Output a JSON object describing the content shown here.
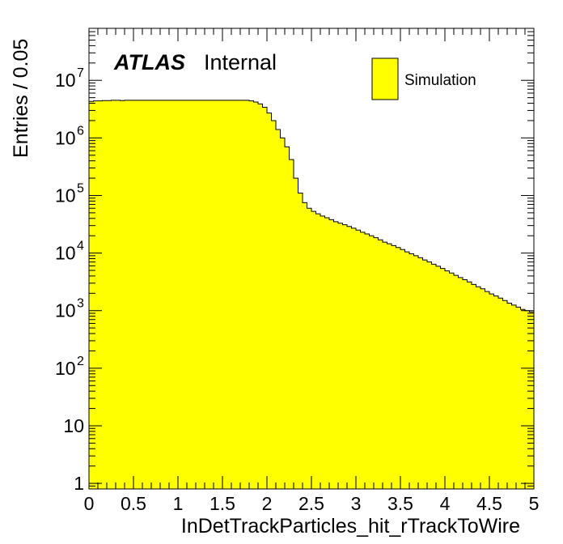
{
  "chart_data": {
    "type": "bar",
    "style": "filled-step-histogram",
    "fill_color": "#ffff00",
    "line_color": "#000000",
    "xlabel": "InDetTrackParticles_hit_rTrackToWire",
    "ylabel": "Entries / 0.05",
    "xlim": [
      0,
      5
    ],
    "ylim": [
      0.8,
      80000000
    ],
    "y_scale": "log",
    "bin_width": 0.05,
    "grid": false,
    "x_ticks": [
      "0",
      "0.5",
      "1",
      "1.5",
      "2",
      "2.5",
      "3",
      "3.5",
      "4",
      "4.5",
      "5"
    ],
    "y_ticks": [
      {
        "base": "1",
        "exp": ""
      },
      {
        "base": "10",
        "exp": ""
      },
      {
        "base": "10",
        "exp": "2"
      },
      {
        "base": "10",
        "exp": "3"
      },
      {
        "base": "10",
        "exp": "4"
      },
      {
        "base": "10",
        "exp": "5"
      },
      {
        "base": "10",
        "exp": "6"
      },
      {
        "base": "10",
        "exp": "7"
      }
    ],
    "values": [
      4300000,
      4400000,
      4400000,
      4450000,
      4450000,
      4500000,
      4500000,
      4450000,
      4500000,
      4500000,
      4500000,
      4500000,
      4500000,
      4500000,
      4500000,
      4500000,
      4500000,
      4500000,
      4500000,
      4500000,
      4500000,
      4500000,
      4500000,
      4500000,
      4500000,
      4500000,
      4500000,
      4500000,
      4500000,
      4500000,
      4500000,
      4500000,
      4500000,
      4500000,
      4500000,
      4500000,
      4400000,
      4200000,
      3900000,
      3400000,
      2700000,
      2000000,
      1400000,
      1000000,
      700000,
      420000,
      200000,
      110000,
      75000,
      60000,
      53000,
      48000,
      44000,
      41000,
      38000,
      35000,
      33000,
      31000,
      29000,
      27000,
      25000,
      23000,
      21500,
      20000,
      18500,
      17000,
      15500,
      14500,
      13500,
      12500,
      11500,
      10500,
      9700,
      9000,
      8300,
      7600,
      7000,
      6400,
      5900,
      5400,
      4900,
      4500,
      4100,
      3750,
      3450,
      3150,
      2850,
      2600,
      2400,
      2150,
      1950,
      1800,
      1650,
      1500,
      1350,
      1250,
      1150,
      1050,
      1000,
      950
    ],
    "legend": {
      "entries": [
        "Simulation"
      ],
      "position": "top-right"
    },
    "annotations": {
      "atlas": "ATLAS",
      "label": "Internal"
    }
  }
}
